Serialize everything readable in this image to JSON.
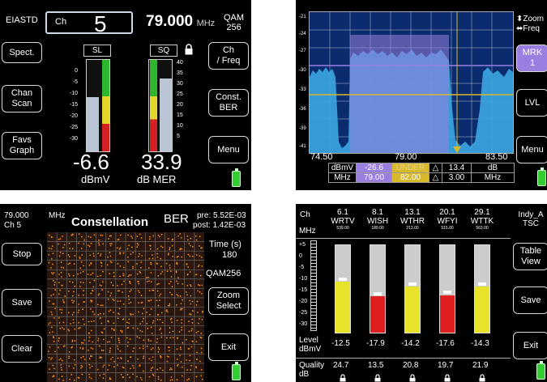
{
  "p1": {
    "standard": "EIASTD",
    "ch_label": "Ch",
    "ch_value": "5",
    "freq_value": "79.000",
    "freq_unit": "MHz",
    "qam_line1": "QAM",
    "qam_line2": "256",
    "left_buttons": [
      "Spect.",
      "Chan\nScan",
      "Favs\nGraph"
    ],
    "right_buttons": [
      "Ch\n/ Freq",
      "Const.\nBER",
      "Menu"
    ],
    "sl_label": "SL",
    "sq_label": "SQ",
    "sl_ticks": [
      "0",
      "-5",
      "-10",
      "-15",
      "-20",
      "-25",
      "-30"
    ],
    "sq_ticks": [
      "40",
      "35",
      "30",
      "25",
      "20",
      "15",
      "10",
      "5"
    ],
    "sl_level": 0.59,
    "sq_level": 0.8,
    "sl_value": "-6.6",
    "sl_unit": "dBmV",
    "sq_value": "33.9",
    "sq_unit": "dB MER"
  },
  "p2": {
    "y_ticks": [
      "-21",
      "-24",
      "-27",
      "-30",
      "-33",
      "-36",
      "-39",
      "-41"
    ],
    "x_left": "74.50",
    "x_mid": "79.00",
    "x_right": "83.50",
    "zoom": "Zoom",
    "freq": "Freq",
    "mrk_line1": "MRK",
    "mrk_line2": "1",
    "lvl": "LVL",
    "menu": "Menu",
    "row1": [
      "dBmV",
      "-26.6",
      "UNDER",
      "△",
      "13.4",
      "dB"
    ],
    "row2": [
      "MHz",
      "79.00",
      "82.00",
      "△",
      "3.00",
      "MHz"
    ],
    "colors": {
      "purple": "#9b7fe0",
      "gold": "#d8b92a",
      "trace": "#3aa6e0"
    }
  },
  "p3": {
    "freq": "79.000",
    "unit": "MHz",
    "ch": "Ch 5",
    "title": "Constellation",
    "ber_label": "BER",
    "pre_label": "pre:",
    "pre_value": "5.52E-03",
    "post_label": "post:",
    "post_value": "1.42E-03",
    "time_label": "Time (s)",
    "time_value": "180",
    "qam": "QAM256",
    "left_buttons": [
      "Stop",
      "Save",
      "Clear"
    ],
    "right_buttons": [
      "Zoom\nSelect",
      "Exit"
    ]
  },
  "p4": {
    "ch_label": "Ch",
    "mhz_label": "MHz",
    "location_line1": "Indy_A",
    "location_line2": "TSC",
    "channels": [
      {
        "num": "6.1",
        "name": "WRTV",
        "freq": "539.00",
        "level": "-12.5",
        "quality": "24.7",
        "level_frac": 0.58,
        "color": "#e8e22a"
      },
      {
        "num": "8.1",
        "name": "WISH",
        "freq": "189.00",
        "level": "-17.9",
        "quality": "13.5",
        "level_frac": 0.42,
        "color": "#e02020"
      },
      {
        "num": "13.1",
        "name": "WTHR",
        "freq": "213.00",
        "level": "-14.2",
        "quality": "20.8",
        "level_frac": 0.53,
        "color": "#e8e22a"
      },
      {
        "num": "20.1",
        "name": "WFYI",
        "freq": "515.00",
        "level": "-17.6",
        "quality": "19.7",
        "level_frac": 0.43,
        "color": "#e02020"
      },
      {
        "num": "29.1",
        "name": "WTTK",
        "freq": "563.00",
        "level": "-14.3",
        "quality": "21.9",
        "level_frac": 0.53,
        "color": "#e8e22a"
      }
    ],
    "scale_ticks": [
      "+5",
      "0",
      "-5",
      "-10",
      "-15",
      "-20",
      "-25",
      "-30"
    ],
    "level_label_1": "Level",
    "level_label_2": "dBmV",
    "quality_label_1": "Quality",
    "quality_label_2": "dB",
    "right_buttons": [
      "Table\nView",
      "Save",
      "Exit"
    ]
  }
}
